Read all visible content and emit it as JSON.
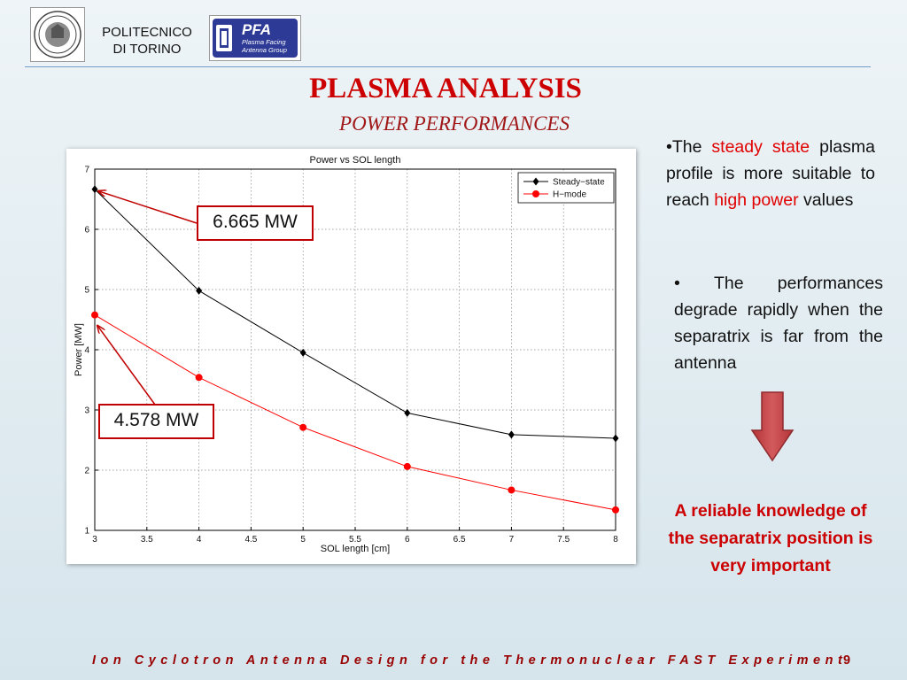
{
  "header": {
    "institution_line1": "POLITECNICO",
    "institution_line2": "DI TORINO",
    "pfa_logo_title": "PFA",
    "pfa_logo_line1": "Plasma Facing",
    "pfa_logo_line2": "Antenna Group"
  },
  "title": "PLASMA ANALYSIS",
  "subtitle": "POWER PERFORMANCES",
  "callouts": {
    "steady": "6.665 MW",
    "hmode": "4.578 MW"
  },
  "bullets": {
    "b1": {
      "p1": "The ",
      "h1": "steady state",
      "p2": " plasma profile is more suitable to reach ",
      "h2": "high power",
      "p3": " values"
    },
    "b2": {
      "text": "The performances degrade rapidly when the separatrix is far from the antenna"
    }
  },
  "conclusion": "A reliable knowledge of the separatrix position is very important",
  "footer": {
    "text": "Ion Cyclotron Antenna Design for the Thermonuclear FAST Experiment",
    "page": "9"
  },
  "colors": {
    "title": "#cc0000",
    "steady_series": "#000000",
    "hmode_series": "#ff0000",
    "arrow_fill": "#c9474a"
  },
  "chart_data": {
    "type": "line",
    "title": "Power vs SOL length",
    "xlabel": "SOL length [cm]",
    "ylabel": "Power [MW]",
    "xlim": [
      3,
      8
    ],
    "ylim": [
      1,
      7
    ],
    "xticks": [
      3,
      3.5,
      4,
      4.5,
      5,
      5.5,
      6,
      6.5,
      7,
      7.5,
      8
    ],
    "yticks": [
      1,
      2,
      3,
      4,
      5,
      6,
      7
    ],
    "grid": true,
    "legend_position": "top-right",
    "series": [
      {
        "name": "Steady−state",
        "marker": "diamond",
        "color": "#000000",
        "x": [
          3,
          4,
          5,
          6,
          7,
          8
        ],
        "y": [
          6.665,
          4.98,
          3.95,
          2.95,
          2.59,
          2.53
        ]
      },
      {
        "name": "H−mode",
        "marker": "circle",
        "color": "#ff0000",
        "x": [
          3,
          4,
          5,
          6,
          7,
          8
        ],
        "y": [
          4.578,
          3.54,
          2.71,
          2.06,
          1.67,
          1.34
        ]
      }
    ]
  }
}
